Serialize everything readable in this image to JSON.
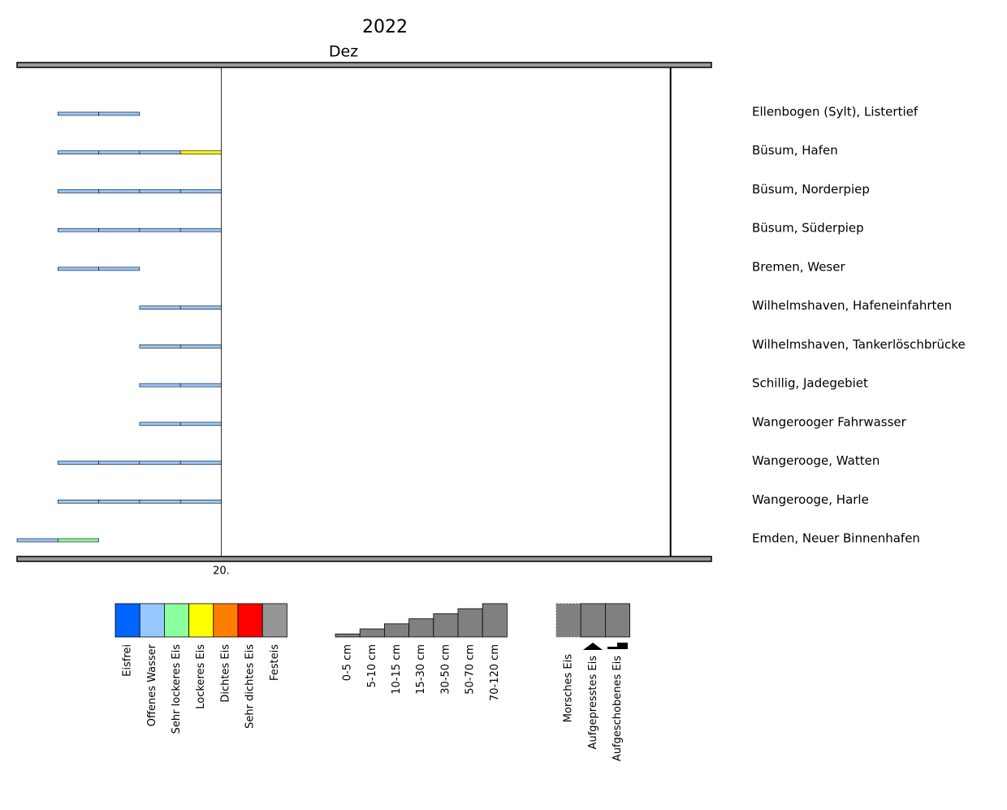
{
  "chart_data": {
    "type": "ice-timeline",
    "title": "2022",
    "month": "Dez",
    "xlim": [
      15,
      32
    ],
    "xticks": [
      {
        "value": 20,
        "label": "20."
      }
    ],
    "year_end": 31,
    "categories": [
      15,
      16,
      17,
      18,
      19
    ],
    "series": [
      {
        "name": "Ellenbogen (Sylt), Listertief",
        "values": [
          null,
          "Offenes Wasser",
          "Offenes Wasser",
          null,
          null
        ]
      },
      {
        "name": "Büsum, Hafen",
        "values": [
          null,
          "Offenes Wasser",
          "Offenes Wasser",
          "Offenes Wasser",
          "Lockeres Eis"
        ]
      },
      {
        "name": "Büsum, Norderpiep",
        "values": [
          null,
          "Offenes Wasser",
          "Offenes Wasser",
          "Offenes Wasser",
          "Offenes Wasser"
        ]
      },
      {
        "name": "Büsum, Süderpiep",
        "values": [
          null,
          "Offenes Wasser",
          "Offenes Wasser",
          "Offenes Wasser",
          "Offenes Wasser"
        ]
      },
      {
        "name": "Bremen, Weser",
        "values": [
          null,
          "Offenes Wasser",
          "Offenes Wasser",
          null,
          null
        ]
      },
      {
        "name": "Wilhelmshaven, Hafeneinfahrten",
        "values": [
          null,
          null,
          null,
          "Offenes Wasser",
          "Offenes Wasser"
        ]
      },
      {
        "name": "Wilhelmshaven, Tankerlöschbrücke",
        "values": [
          null,
          null,
          null,
          "Offenes Wasser",
          "Offenes Wasser"
        ]
      },
      {
        "name": "Schillig, Jadegebiet",
        "values": [
          null,
          null,
          null,
          "Offenes Wasser",
          "Offenes Wasser"
        ]
      },
      {
        "name": "Wangerooger Fahrwasser",
        "values": [
          null,
          null,
          null,
          "Offenes Wasser",
          "Offenes Wasser"
        ]
      },
      {
        "name": "Wangerooge, Watten",
        "values": [
          null,
          "Offenes Wasser",
          "Offenes Wasser",
          "Offenes Wasser",
          "Offenes Wasser"
        ]
      },
      {
        "name": "Wangerooge, Harle",
        "values": [
          null,
          "Offenes Wasser",
          "Offenes Wasser",
          "Offenes Wasser",
          "Offenes Wasser"
        ]
      },
      {
        "name": "Emden, Neuer Binnenhafen",
        "values": [
          "Offenes Wasser",
          "Sehr lockeres Eis",
          null,
          null,
          null
        ]
      }
    ],
    "legend": {
      "concentration": [
        {
          "name": "Eisfrei",
          "color": "#0064ff"
        },
        {
          "name": "Offenes Wasser",
          "color": "#96c8ff"
        },
        {
          "name": "Sehr lockeres Eis",
          "color": "#8cff9f"
        },
        {
          "name": "Lockeres Eis",
          "color": "#ffff00"
        },
        {
          "name": "Dichtes Eis",
          "color": "#ff7d00"
        },
        {
          "name": "Sehr dichtes Eis",
          "color": "#ff0000"
        },
        {
          "name": "Festeis",
          "color": "#969696"
        }
      ],
      "thickness": [
        "0-5 cm",
        "5-10 cm",
        "10-15 cm",
        "15-30 cm",
        "30-50 cm",
        "50-70 cm",
        "70-120 cm"
      ],
      "types": [
        "Morsches Eis",
        "Aufgepresstes Eis",
        "Aufgeschobenes Eis"
      ]
    }
  }
}
